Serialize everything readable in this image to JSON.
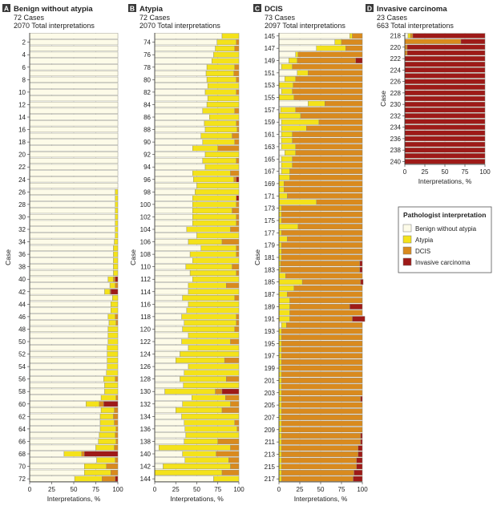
{
  "chart_data": {
    "type": "bar",
    "orientation": "horizontal-stacked-percent",
    "xlabel": "Interpretations, %",
    "ylabel": "Case",
    "xlim": [
      0,
      100
    ],
    "x_ticks": [
      0,
      25,
      50,
      75,
      100
    ],
    "categories_stack": [
      "Benign without atypia",
      "Atypia",
      "DCIS",
      "Invasive carcinoma"
    ],
    "colors": {
      "benign": "#fdfbe8",
      "atypia": "#f4e21a",
      "dcis": "#d98a1e",
      "invasive": "#9e1a18",
      "grid": "#c8c8c8",
      "axis": "#333333"
    },
    "legend": {
      "title": "Pathologist interpretation",
      "items": [
        "Benign without atypia",
        "Atypia",
        "DCIS",
        "Invasive carcinoma"
      ],
      "placement": "right"
    },
    "panels": [
      {
        "letter": "A",
        "title": "Benign without atypia",
        "cases_label": "72 Cases",
        "interp_label": "2070 Total interpretations",
        "case_start": 1,
        "tick_labels": [
          "2",
          "4",
          "6",
          "8",
          "10",
          "12",
          "14",
          "16",
          "18",
          "20",
          "22",
          "24",
          "26",
          "28",
          "30",
          "32",
          "34",
          "36",
          "38",
          "40",
          "42",
          "44",
          "46",
          "48",
          "50",
          "52",
          "54",
          "56",
          "58",
          "60",
          "62",
          "64",
          "66",
          "68",
          "70",
          "72"
        ],
        "series": {
          "atypia": [
            0,
            0,
            0,
            0,
            0,
            0,
            0,
            0,
            0,
            0,
            0,
            0,
            0,
            0,
            0,
            0,
            0,
            0,
            0,
            0,
            0,
            0,
            0,
            0,
            0,
            3,
            3,
            3,
            3,
            3,
            3,
            3,
            3,
            4,
            5,
            5,
            5,
            5,
            5,
            6,
            6,
            6,
            6,
            8,
            8,
            8,
            8,
            11,
            11,
            11,
            12,
            12,
            12,
            12,
            13,
            13,
            15,
            15,
            17,
            15,
            15,
            15,
            16,
            18,
            18,
            20,
            21,
            20,
            21,
            25,
            30,
            31
          ],
          "dcis": [
            0,
            0,
            0,
            0,
            0,
            0,
            0,
            0,
            0,
            0,
            0,
            0,
            0,
            0,
            0,
            0,
            0,
            0,
            0,
            0,
            0,
            0,
            0,
            0,
            0,
            0,
            0,
            0,
            0,
            0,
            0,
            0,
            0,
            0,
            0,
            0,
            0,
            0,
            0,
            2,
            3,
            1,
            0,
            0,
            0,
            3,
            2,
            0,
            0,
            0,
            0,
            0,
            0,
            0,
            0,
            3,
            0,
            0,
            2,
            5,
            4,
            5,
            4,
            2,
            3,
            2,
            4,
            3,
            3,
            13,
            8,
            15
          ],
          "invasive": [
            0,
            0,
            0,
            0,
            0,
            0,
            0,
            0,
            0,
            0,
            0,
            0,
            0,
            0,
            0,
            0,
            0,
            0,
            0,
            0,
            0,
            0,
            0,
            0,
            0,
            0,
            0,
            0,
            0,
            0,
            0,
            0,
            0,
            0,
            0,
            0,
            0,
            0,
            0,
            3,
            0,
            8,
            0,
            0,
            0,
            0,
            0,
            0,
            0,
            0,
            0,
            0,
            0,
            0,
            0,
            0,
            0,
            0,
            0,
            16,
            0,
            0,
            0,
            0,
            0,
            0,
            0,
            38,
            0,
            0,
            0,
            3
          ]
        }
      },
      {
        "letter": "B",
        "title": "Atypia",
        "cases_label": "72 Cases",
        "interp_label": "2070 Total interpretations",
        "case_start": 73,
        "tick_labels": [
          "74",
          "76",
          "78",
          "80",
          "82",
          "84",
          "86",
          "88",
          "90",
          "92",
          "94",
          "96",
          "98",
          "100",
          "102",
          "104",
          "106",
          "108",
          "110",
          "112",
          "114",
          "116",
          "118",
          "120",
          "122",
          "124",
          "126",
          "128",
          "130",
          "132",
          "134",
          "136",
          "138",
          "140",
          "142",
          "144"
        ],
        "series": {
          "atypia": [
            20,
            23,
            23,
            30,
            32,
            33,
            33,
            35,
            37,
            37,
            37,
            38,
            38,
            35,
            38,
            38,
            37,
            38,
            30,
            40,
            40,
            40,
            45,
            48,
            50,
            52,
            52,
            52,
            47,
            52,
            52,
            52,
            50,
            40,
            42,
            55,
            55,
            55,
            55,
            55,
            45,
            60,
            62,
            60,
            62,
            65,
            62,
            62,
            60,
            58,
            60,
            70,
            58,
            60,
            65,
            55,
            66,
            60,
            40,
            57,
            55,
            68,
            60,
            62,
            63,
            40,
            85,
            40,
            52,
            80,
            80,
            30
          ],
          "dcis": [
            0,
            3,
            5,
            0,
            0,
            5,
            6,
            3,
            0,
            3,
            0,
            0,
            5,
            0,
            3,
            2,
            8,
            5,
            25,
            0,
            3,
            0,
            10,
            3,
            0,
            0,
            0,
            3,
            8,
            3,
            3,
            10,
            0,
            20,
            3,
            3,
            0,
            8,
            3,
            0,
            15,
            0,
            5,
            0,
            0,
            3,
            3,
            5,
            0,
            10,
            0,
            0,
            17,
            0,
            0,
            15,
            0,
            8,
            16,
            10,
            20,
            0,
            5,
            2,
            0,
            25,
            10,
            27,
            12,
            10,
            20,
            0
          ],
          "invasive": [
            0,
            0,
            0,
            0,
            0,
            0,
            0,
            0,
            0,
            0,
            0,
            0,
            0,
            0,
            0,
            0,
            0,
            0,
            0,
            0,
            0,
            0,
            0,
            3,
            0,
            0,
            3,
            0,
            0,
            0,
            0,
            0,
            0,
            0,
            0,
            0,
            0,
            0,
            0,
            0,
            0,
            0,
            0,
            0,
            0,
            0,
            0,
            0,
            0,
            0,
            0,
            0,
            0,
            0,
            0,
            0,
            0,
            20,
            0,
            0,
            0,
            0,
            0,
            0,
            0,
            0,
            0,
            0,
            0,
            0,
            0,
            0
          ]
        }
      },
      {
        "letter": "C",
        "title": "DCIS",
        "cases_label": "73 Cases",
        "interp_label": "2097 Total interpretations",
        "case_start": 145,
        "tick_labels": [
          "145",
          "147",
          "149",
          "151",
          "153",
          "155",
          "157",
          "159",
          "161",
          "163",
          "165",
          "167",
          "169",
          "171",
          "173",
          "175",
          "177",
          "179",
          "181",
          "183",
          "185",
          "187",
          "189",
          "191",
          "193",
          "195",
          "197",
          "199",
          "201",
          "203",
          "205",
          "207",
          "209",
          "211",
          "213",
          "215",
          "217"
        ],
        "series": {
          "atypia": [
            3,
            8,
            35,
            3,
            10,
            13,
            13,
            13,
            17,
            13,
            18,
            20,
            18,
            26,
            45,
            30,
            13,
            13,
            17,
            13,
            13,
            13,
            10,
            13,
            6,
            6,
            10,
            45,
            3,
            3,
            3,
            23,
            3,
            10,
            3,
            3,
            3,
            2,
            2,
            8,
            28,
            18,
            10,
            13,
            13,
            13,
            13,
            6,
            3,
            3,
            3,
            3,
            3,
            3,
            3,
            3,
            3,
            3,
            3,
            3,
            3,
            3,
            3,
            3,
            3,
            3,
            3,
            3,
            3,
            3,
            3,
            3,
            3
          ],
          "dcis": [
            12,
            25,
            20,
            77,
            70,
            84,
            65,
            80,
            83,
            84,
            82,
            45,
            80,
            74,
            52,
            67,
            84,
            84,
            80,
            80,
            84,
            84,
            87,
            87,
            94,
            94,
            90,
            55,
            97,
            97,
            97,
            77,
            97,
            90,
            97,
            97,
            97,
            95,
            95,
            92,
            70,
            82,
            90,
            87,
            72,
            87,
            75,
            91,
            97,
            97,
            97,
            97,
            97,
            97,
            97,
            97,
            97,
            97,
            97,
            95,
            97,
            97,
            97,
            97,
            97,
            95,
            95,
            92,
            92,
            90,
            90,
            87,
            86
          ],
          "invasive": [
            0,
            0,
            0,
            0,
            8,
            0,
            0,
            0,
            0,
            0,
            0,
            0,
            0,
            0,
            0,
            0,
            0,
            0,
            0,
            0,
            0,
            0,
            0,
            0,
            0,
            0,
            0,
            0,
            0,
            0,
            0,
            0,
            0,
            0,
            0,
            0,
            0,
            3,
            3,
            0,
            3,
            0,
            0,
            0,
            15,
            0,
            15,
            0,
            0,
            0,
            0,
            0,
            0,
            0,
            0,
            0,
            0,
            0,
            0,
            2,
            0,
            0,
            0,
            0,
            0,
            2,
            2,
            5,
            5,
            7,
            7,
            10,
            11
          ]
        }
      },
      {
        "letter": "D",
        "title": "Invasive carcinoma",
        "cases_label": "23 Cases",
        "interp_label": "663 Total interpretations",
        "case_start": 218,
        "tick_labels": [
          "218",
          "220",
          "222",
          "224",
          "226",
          "228",
          "230",
          "232",
          "234",
          "236",
          "238",
          "240"
        ],
        "series": {
          "atypia": [
            3,
            0,
            0,
            0,
            0,
            0,
            0,
            0,
            0,
            0,
            0,
            0,
            0,
            0,
            0,
            0,
            0,
            0,
            0,
            0,
            0,
            0,
            0
          ],
          "dcis": [
            3,
            70,
            3,
            3,
            0,
            0,
            0,
            0,
            0,
            0,
            0,
            0,
            0,
            0,
            0,
            0,
            0,
            0,
            0,
            0,
            0,
            0,
            0
          ],
          "invasive": [
            90,
            30,
            97,
            97,
            100,
            100,
            100,
            100,
            100,
            100,
            100,
            100,
            100,
            100,
            100,
            100,
            100,
            100,
            100,
            100,
            100,
            100,
            100
          ]
        }
      }
    ]
  }
}
